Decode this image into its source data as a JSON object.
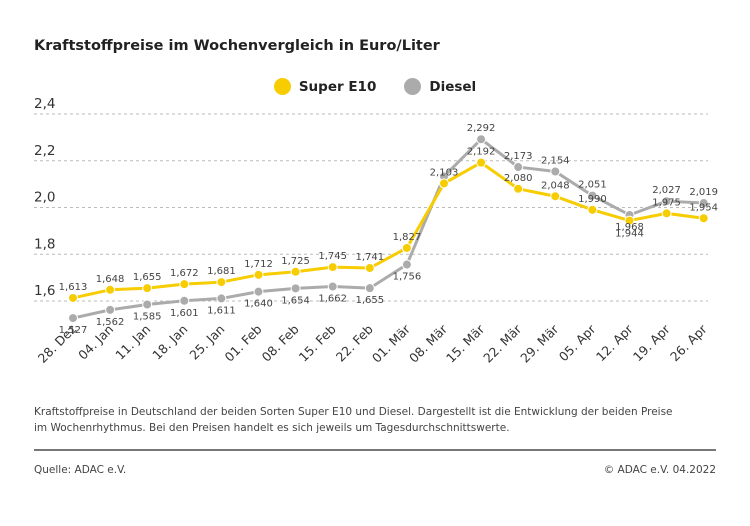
{
  "title": "Kraftstoffpreise im Wochenvergleich in Euro/Liter",
  "footnote": "Kraftstoffpreise in Deutschland der beiden Sorten Super E10 und Diesel. Dargestellt ist die Entwicklung der beiden Preise im Wochenrhythmus. Bei den Preisen handelt es sich jeweils um Tagesdurchschnittswerte.",
  "source": "Quelle: ADAC e.V.",
  "copyright": "© ADAC e.V. 04.2022",
  "colors": {
    "super_e10": "#F7CC00",
    "diesel": "#ABABAB",
    "grid": "#BBBBBB",
    "label": "#444444"
  },
  "chart_data": {
    "type": "line",
    "title": "Kraftstoffpreise im Wochenvergleich in Euro/Liter",
    "categories": [
      "28. Dez",
      "04. Jan",
      "11. Jan",
      "18. Jan",
      "25. Jan",
      "01. Feb",
      "08. Feb",
      "15. Feb",
      "22. Feb",
      "01. Mär",
      "08. Mär",
      "15. Mär",
      "22. Mär",
      "29. Mär",
      "05. Apr",
      "12. Apr",
      "19. Apr",
      "26. Apr"
    ],
    "y_ticks": [
      "1,6",
      "1,8",
      "2,0",
      "2,2",
      "2,4"
    ],
    "y_tick_values": [
      1.6,
      1.8,
      2.0,
      2.2,
      2.4
    ],
    "ylim": [
      1.6,
      2.4
    ],
    "grid": true,
    "legend_position": "top-center",
    "series": [
      {
        "name": "Super E10",
        "color": "#F7CC00",
        "values": [
          1.613,
          1.648,
          1.655,
          1.672,
          1.681,
          1.712,
          1.725,
          1.745,
          1.741,
          1.827,
          2.103,
          2.192,
          2.08,
          2.048,
          1.99,
          1.944,
          1.975,
          1.954
        ],
        "labels": [
          "1,613",
          "1,648",
          "1,655",
          "1,672",
          "1,681",
          "1,712",
          "1,725",
          "1,745",
          "1,741",
          "1,827",
          "2,103",
          "2,192",
          "2,080",
          "2,048",
          "1,990",
          "1,944",
          "1,975",
          "1,954"
        ]
      },
      {
        "name": "Diesel",
        "color": "#ABABAB",
        "values": [
          1.527,
          1.562,
          1.585,
          1.601,
          1.611,
          1.64,
          1.654,
          1.662,
          1.655,
          1.756,
          2.133,
          2.292,
          2.173,
          2.154,
          2.051,
          1.968,
          2.027,
          2.019
        ],
        "labels": [
          "1,527",
          "1,562",
          "1,585",
          "1,601",
          "1,611",
          "1,640",
          "1,654",
          "1,662",
          "1,655",
          "1,756",
          "",
          "2,292",
          "2,173",
          "2,154",
          "2,051",
          "1,968",
          "2,027",
          "2,019"
        ]
      }
    ]
  }
}
